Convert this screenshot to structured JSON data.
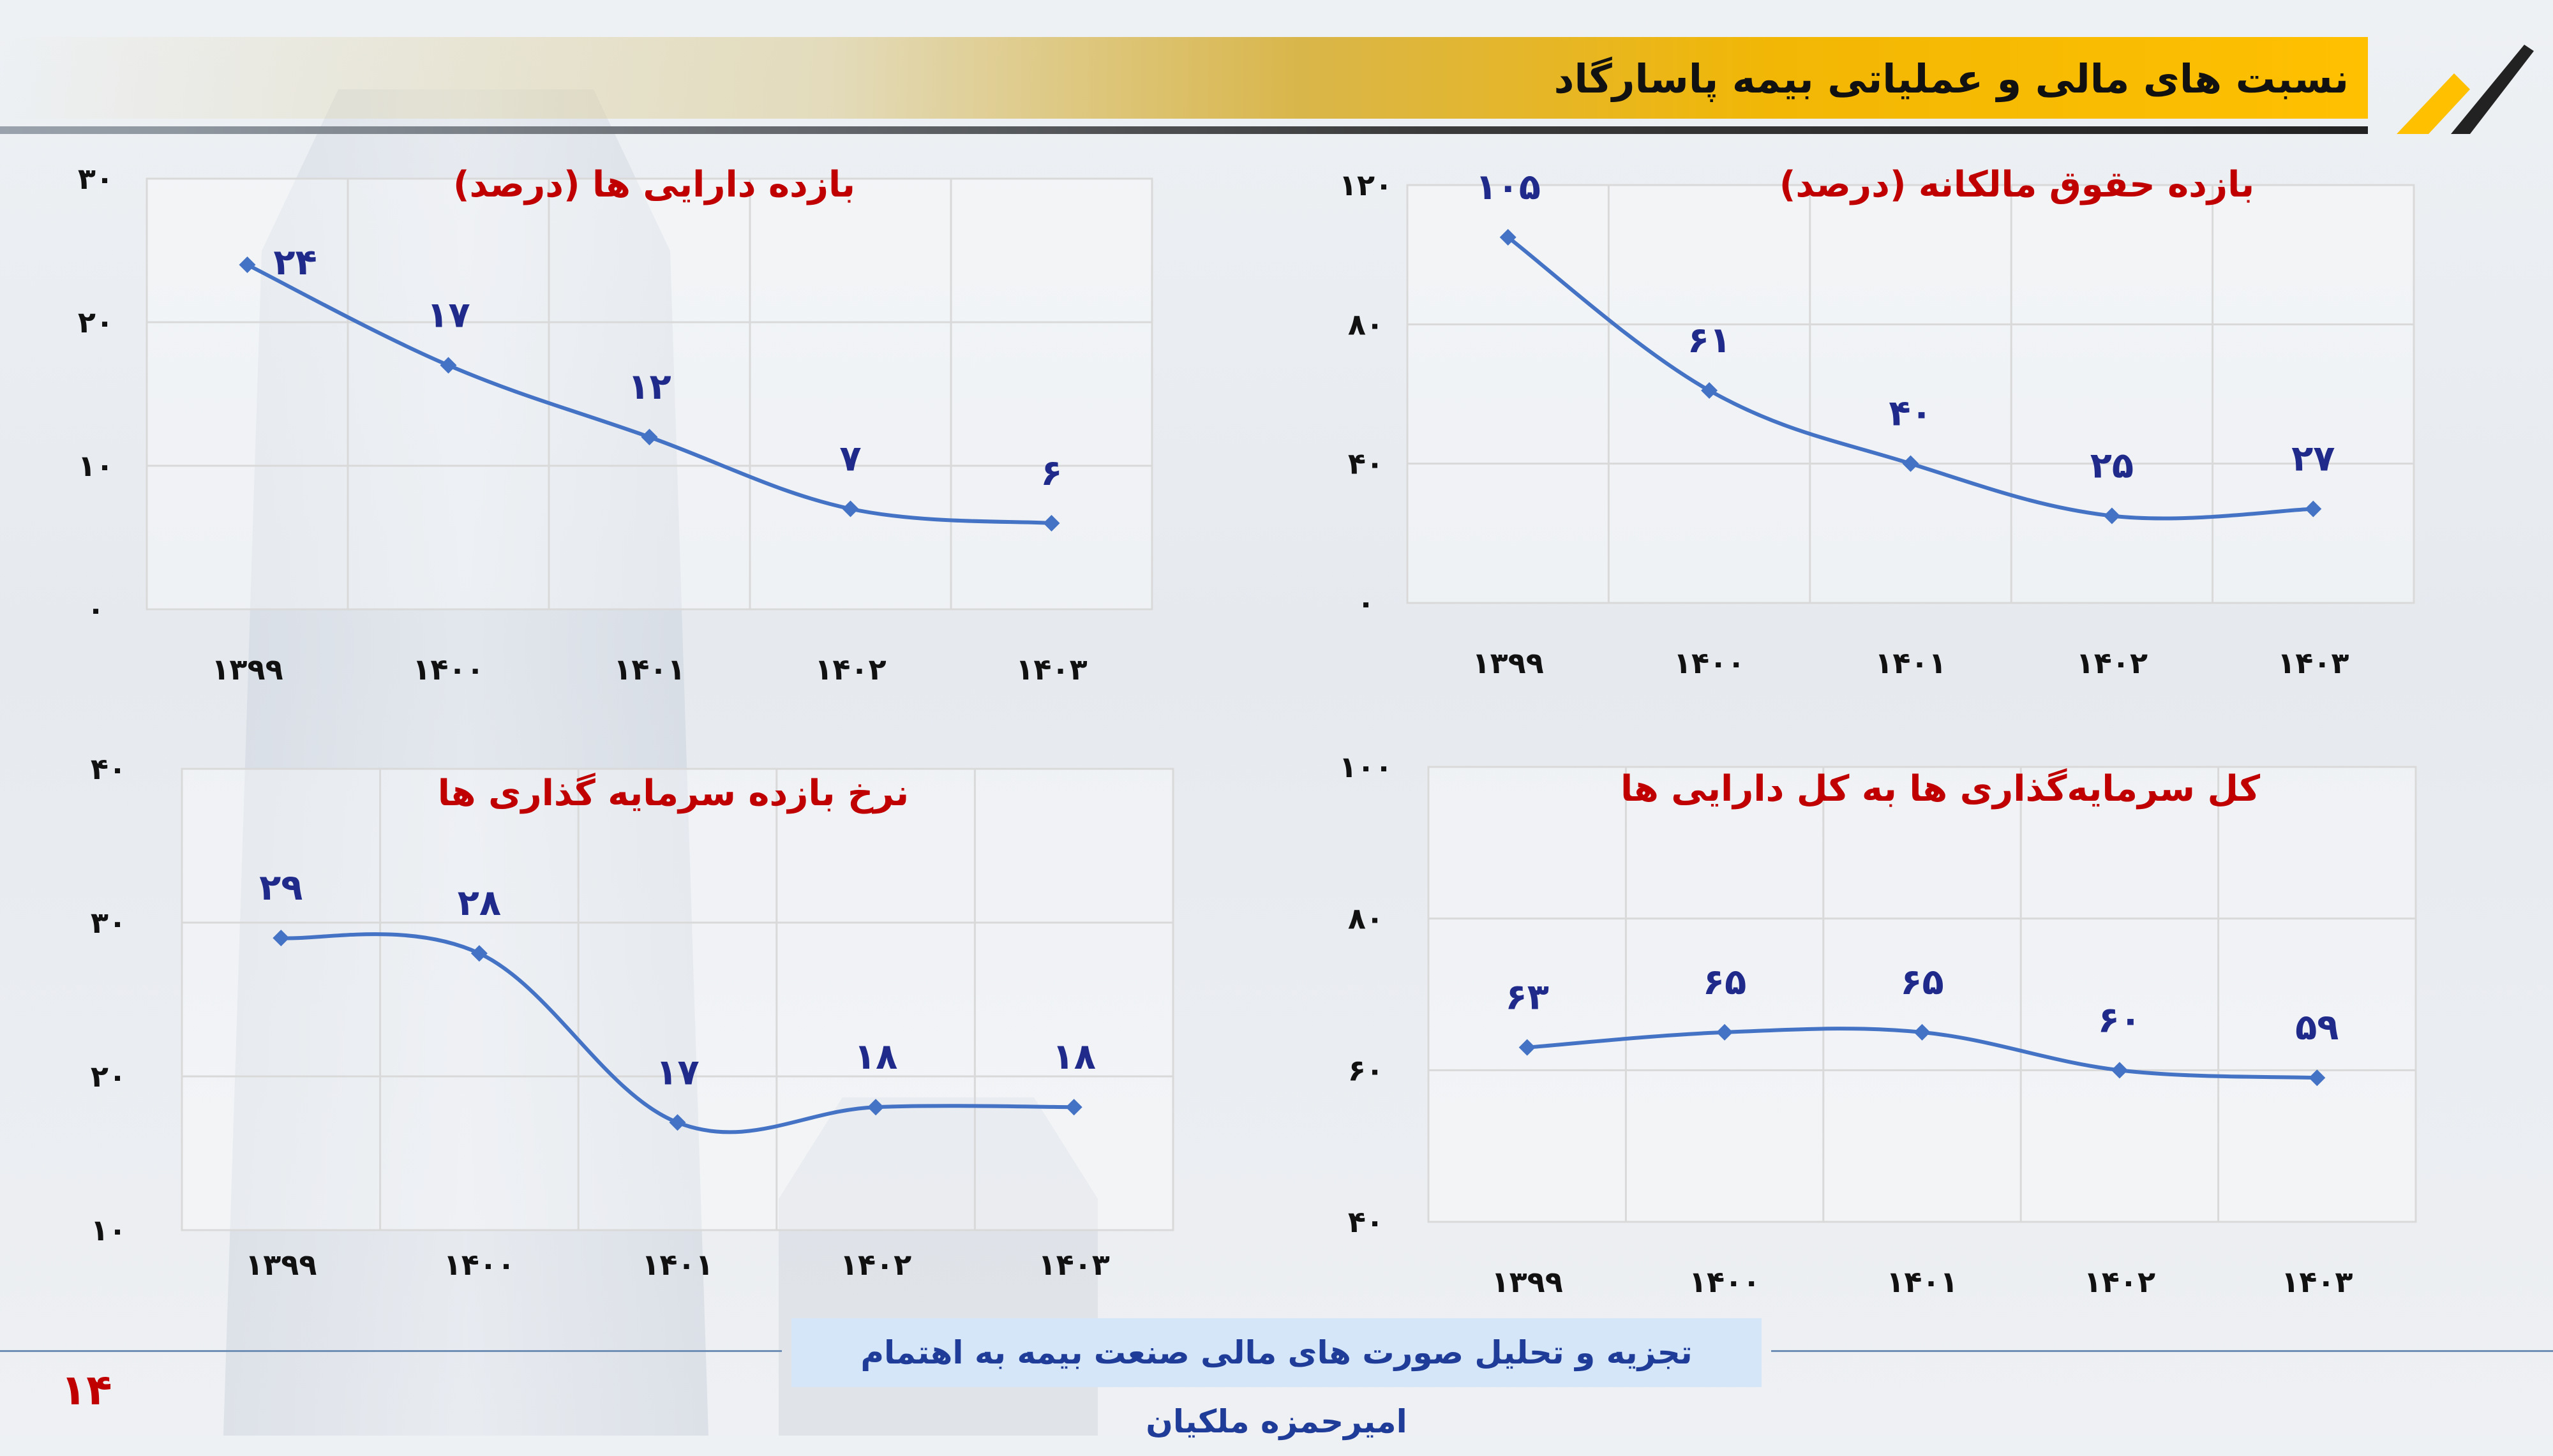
{
  "header": {
    "title": "نسبت های مالی و عملیاتی بیمه پاسارگاد"
  },
  "footer": {
    "text": "تجزیه و تحلیل صورت های مالی صنعت بیمه به اهتمام امیرحمزه ملکیان",
    "page_number": "۱۴"
  },
  "colors": {
    "series_line": "#4472c4",
    "series_marker": "#4472c4",
    "data_label": "#1f2a8a",
    "chart_title": "#c00000",
    "accent": "#ffc000"
  },
  "chart_data": [
    {
      "type": "line",
      "title": "بازده دارایی ها (درصد)",
      "categories": [
        "۱۳۹۹",
        "۱۴۰۰",
        "۱۴۰۱",
        "۱۴۰۲",
        "۱۴۰۳"
      ],
      "values": [
        24,
        17,
        12,
        7,
        6
      ],
      "data_labels": [
        "۲۴",
        "۱۷",
        "۱۲",
        "۷",
        "۶"
      ],
      "ylim": [
        0,
        30
      ],
      "yticks": [
        0,
        10,
        20,
        30
      ],
      "ytick_labels": [
        "۰",
        "۱۰",
        "۲۰",
        "۳۰"
      ],
      "grid": true
    },
    {
      "type": "line",
      "title": "بازده حقوق مالکانه (درصد)",
      "categories": [
        "۱۳۹۹",
        "۱۴۰۰",
        "۱۴۰۱",
        "۱۴۰۲",
        "۱۴۰۳"
      ],
      "values": [
        105,
        61,
        40,
        25,
        27
      ],
      "data_labels": [
        "۱۰۵",
        "۶۱",
        "۴۰",
        "۲۵",
        "۲۷"
      ],
      "ylim": [
        0,
        120
      ],
      "yticks": [
        0,
        40,
        80,
        120
      ],
      "ytick_labels": [
        "۰",
        "۴۰",
        "۸۰",
        "۱۲۰"
      ],
      "grid": true
    },
    {
      "type": "line",
      "title": "نرخ بازده سرمایه گذاری ها",
      "categories": [
        "۱۳۹۹",
        "۱۴۰۰",
        "۱۴۰۱",
        "۱۴۰۲",
        "۱۴۰۳"
      ],
      "values": [
        29,
        28,
        17,
        18,
        18
      ],
      "data_labels": [
        "۲۹",
        "۲۸",
        "۱۷",
        "۱۸",
        "۱۸"
      ],
      "ylim": [
        10,
        40
      ],
      "yticks": [
        10,
        20,
        30,
        40
      ],
      "ytick_labels": [
        "۱۰",
        "۲۰",
        "۳۰",
        "۴۰"
      ],
      "grid": true
    },
    {
      "type": "line",
      "title": "کل سرمایه‌گذاری ها به کل دارایی ها",
      "categories": [
        "۱۳۹۹",
        "۱۴۰۰",
        "۱۴۰۱",
        "۱۴۰۲",
        "۱۴۰۳"
      ],
      "values": [
        63,
        65,
        65,
        60,
        59
      ],
      "data_labels": [
        "۶۳",
        "۶۵",
        "۶۵",
        "۶۰",
        "۵۹"
      ],
      "ylim": [
        40,
        100
      ],
      "yticks": [
        40,
        60,
        80,
        100
      ],
      "ytick_labels": [
        "۴۰",
        "۶۰",
        "۸۰",
        "۱۰۰"
      ],
      "grid": true
    }
  ]
}
